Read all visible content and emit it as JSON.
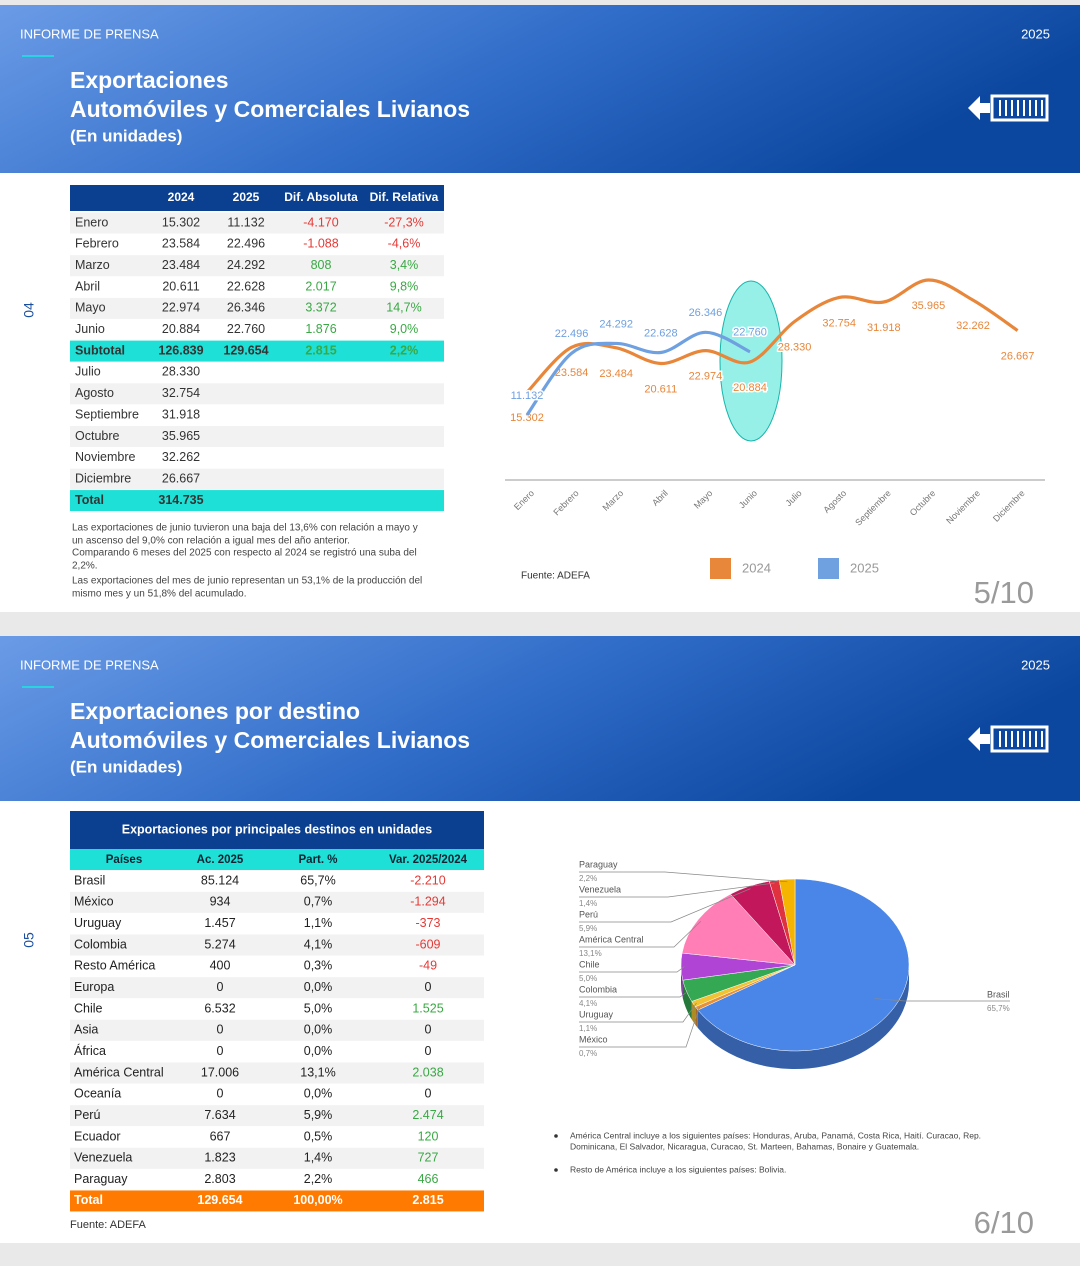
{
  "slides": [
    {
      "header": {
        "label": "INFORME DE PRENSA",
        "year": "2025",
        "title": [
          "Exportaciones",
          "Automóviles y Comerciales Livianos",
          "(En unidades)"
        ]
      },
      "section": "04",
      "table": {
        "columns": [
          "2024",
          "2025",
          "Dif. Absoluta",
          "Dif. Relativa"
        ],
        "rows": [
          [
            "Enero",
            "15.302",
            "11.132",
            "-4.170",
            "-27,3%"
          ],
          [
            "Febrero",
            "23.584",
            "22.496",
            "-1.088",
            "-4,6%"
          ],
          [
            "Marzo",
            "23.484",
            "24.292",
            "808",
            "3,4%"
          ],
          [
            "Abril",
            "20.611",
            "22.628",
            "2.017",
            "9,8%"
          ],
          [
            "Mayo",
            "22.974",
            "26.346",
            "3.372",
            "14,7%"
          ],
          [
            "Junio",
            "20.884",
            "22.760",
            "1.876",
            "9,0%"
          ],
          [
            "Subtotal",
            "126.839",
            "129.654",
            "2.815",
            "2,2%"
          ],
          [
            "Julio",
            "28.330"
          ],
          [
            "Agosto",
            "32.754"
          ],
          [
            "Septiembre",
            "31.918"
          ],
          [
            "Octubre",
            "35.965"
          ],
          [
            "Noviembre",
            "32.262"
          ],
          [
            "Diciembre",
            "26.667"
          ],
          [
            "Total",
            "314.735"
          ]
        ]
      },
      "notes": [
        "Las exportaciones de junio tuvieron una baja del 13,6% con relación a mayo y",
        "un ascenso del 9,0% con relación a igual mes del año anterior.",
        "Comparando 6 meses del 2025 con respecto al 2024 se registró una suba del",
        "2,2%.",
        "Las exportaciones del mes de junio representan un 53,1% de la producción del",
        "mismo mes y un 51,8% del acumulado."
      ],
      "source": "Fuente: ADEFA",
      "page": "5/10"
    },
    {
      "header": {
        "label": "INFORME DE PRENSA",
        "year": "2025",
        "title": [
          "Exportaciones por destino",
          "Automóviles y Comerciales Livianos",
          "(En unidades)"
        ]
      },
      "section": "05",
      "table": {
        "title": "Exportaciones por principales destinos en unidades",
        "columns": [
          "Países",
          "Ac. 2025",
          "Part. %",
          "Var. 2025/2024"
        ],
        "rows": [
          [
            "Brasil",
            "85.124",
            "65,7%",
            "-2.210"
          ],
          [
            "México",
            "934",
            "0,7%",
            "-1.294"
          ],
          [
            "Uruguay",
            "1.457",
            "1,1%",
            "-373"
          ],
          [
            "Colombia",
            "5.274",
            "4,1%",
            "-609"
          ],
          [
            "Resto América",
            "400",
            "0,3%",
            "-49"
          ],
          [
            "Europa",
            "0",
            "0,0%",
            "0"
          ],
          [
            "Chile",
            "6.532",
            "5,0%",
            "1.525"
          ],
          [
            "Asia",
            "0",
            "0,0%",
            "0"
          ],
          [
            "África",
            "0",
            "0,0%",
            "0"
          ],
          [
            "América Central",
            "17.006",
            "13,1%",
            "2.038"
          ],
          [
            "Oceanía",
            "0",
            "0,0%",
            "0"
          ],
          [
            "Perú",
            "7.634",
            "5,9%",
            "2.474"
          ],
          [
            "Ecuador",
            "667",
            "0,5%",
            "120"
          ],
          [
            "Venezuela",
            "1.823",
            "1,4%",
            "727"
          ],
          [
            "Paraguay",
            "2.803",
            "2,2%",
            "466"
          ],
          [
            "Total",
            "129.654",
            "100,00%",
            "2.815"
          ]
        ]
      },
      "notes": [
        [
          "América Central incluye a los siguientes países: Honduras, Aruba, Panamá,  Costa Rica, Haití. Curacao, Rep.",
          "Dominicana, El Salvador, Nicaragua, Curacao, St. Marteen, Bahamas, Bonaire y Guatemala."
        ],
        [
          "Resto de América incluye a los siguientes países: Bolivia."
        ]
      ],
      "source": "Fuente: ADEFA",
      "page": "6/10"
    }
  ],
  "chart_data": [
    {
      "type": "line",
      "categories": [
        "Enero",
        "Febrero",
        "Marzo",
        "Abril",
        "Mayo",
        "Junio",
        "Julio",
        "Agosto",
        "Septiembre",
        "Octubre",
        "Noviembre",
        "Diciembre"
      ],
      "series": [
        {
          "name": "2024",
          "color": "#e8863a",
          "values": [
            15302,
            23584,
            23484,
            20611,
            22974,
            20884,
            28330,
            32754,
            31918,
            35965,
            32262,
            26667
          ],
          "value_labels": [
            "15.302",
            "23.584",
            "23.484",
            "20.611",
            "22.974",
            "20.884",
            "28.330",
            "32.754",
            "31.918",
            "35.965",
            "32.262",
            "26.667"
          ]
        },
        {
          "name": "2025",
          "color": "#6fa0e0",
          "values": [
            11132,
            22496,
            24292,
            22628,
            26346,
            22760,
            null,
            null,
            null,
            null,
            null,
            null
          ],
          "value_labels": [
            "11.132",
            "22.496",
            "24.292",
            "22.628",
            "26.346",
            "22.760",
            null,
            null,
            null,
            null,
            null,
            null
          ]
        }
      ],
      "legend": "bottom"
    },
    {
      "type": "pie",
      "categories": [
        "Brasil",
        "México",
        "Uruguay",
        "Colombia",
        "Chile",
        "América Central",
        "Perú",
        "Venezuela",
        "Paraguay"
      ],
      "values": [
        65.7,
        0.7,
        1.1,
        4.1,
        5.0,
        13.1,
        5.9,
        1.4,
        2.2
      ],
      "value_labels": [
        "65,7%",
        "0,7%",
        "1,1%",
        "4,1%",
        "5,0%",
        "13,1%",
        "5,9%",
        "1,4%",
        "2,2%"
      ],
      "colors": [
        "#4a86e8",
        "#e69138",
        "#f1c232",
        "#34a853",
        "#b044d4",
        "#ff7eb6",
        "#c2185b",
        "#e0313f",
        "#f4b400"
      ]
    }
  ]
}
